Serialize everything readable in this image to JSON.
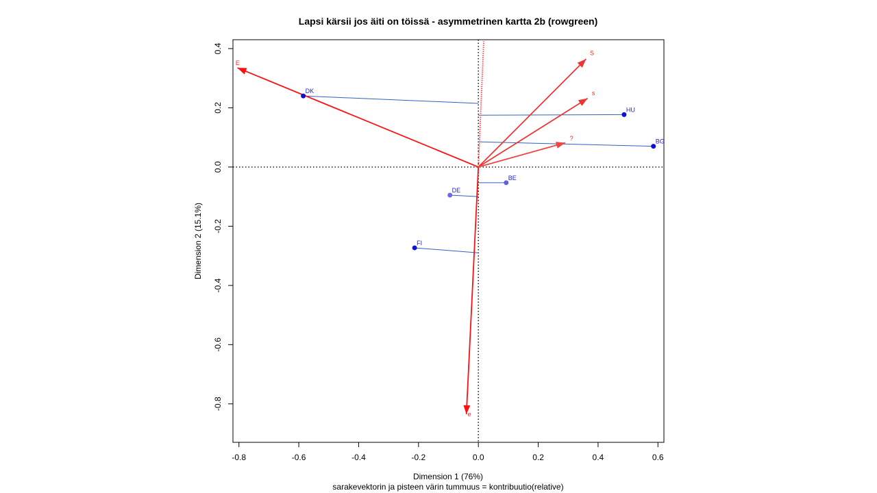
{
  "chart_data": {
    "type": "scatter",
    "title": "Lapsi kärsii jos äiti on töissä - asymmetrinen kartta 2b (rowgreen)",
    "xlabel": "Dimension 1 (76%)",
    "ylabel": "Dimension 2 (15.1%)",
    "subtitle": "sarakevektorin ja pisteen värin tummuus = kontribuutio(relative)",
    "xlim": [
      -0.82,
      0.62
    ],
    "ylim": [
      -0.93,
      0.43
    ],
    "x_ticks": [
      -0.8,
      -0.6,
      -0.4,
      -0.2,
      0.0,
      0.2,
      0.4,
      0.6
    ],
    "y_ticks": [
      -0.8,
      -0.6,
      -0.4,
      -0.2,
      0.0,
      0.2,
      0.4
    ],
    "x_tick_labels": [
      "-0.8",
      "-0.6",
      "-0.4",
      "-0.2",
      "0.0",
      "0.2",
      "0.4",
      "0.6"
    ],
    "y_tick_labels": [
      "-0.8",
      "-0.6",
      "-0.4",
      "-0.2",
      "0.0",
      "0.2",
      "0.4"
    ],
    "grid": false,
    "reference_lines": {
      "x": 0,
      "y": 0,
      "style": "dotted"
    },
    "points": [
      {
        "label": "DK",
        "x": -0.585,
        "y": 0.24,
        "proj": 0.215,
        "color": "#1010d0"
      },
      {
        "label": "HU",
        "x": 0.487,
        "y": 0.177,
        "proj": 0.175,
        "color": "#1010d0"
      },
      {
        "label": "BG",
        "x": 0.585,
        "y": 0.07,
        "proj": 0.085,
        "color": "#1010d0"
      },
      {
        "label": "BE",
        "x": 0.093,
        "y": -0.053,
        "proj": -0.053,
        "color": "#6060e0"
      },
      {
        "label": "DE",
        "x": -0.095,
        "y": -0.095,
        "proj": -0.1,
        "color": "#6a6ae8"
      },
      {
        "label": "FI",
        "x": -0.213,
        "y": -0.273,
        "proj": -0.29,
        "color": "#1010d0"
      }
    ],
    "vectors": [
      {
        "label": "E",
        "x": -0.805,
        "y": 0.335,
        "color": "#ff1010"
      },
      {
        "label": "S",
        "x": 0.36,
        "y": 0.365,
        "color": "#ee3535"
      },
      {
        "label": "s",
        "x": 0.365,
        "y": 0.232,
        "color": "#ee3535"
      },
      {
        "label": "?",
        "x": 0.29,
        "y": 0.082,
        "color": "#ee4545"
      },
      {
        "label": "e",
        "x": -0.04,
        "y": -0.835,
        "color": "#ff1010"
      },
      {
        "label": "",
        "x": 0.018,
        "y": 0.425,
        "color": "#ff4040",
        "dotted": true
      }
    ],
    "projection_line_color": "#3060c0"
  }
}
